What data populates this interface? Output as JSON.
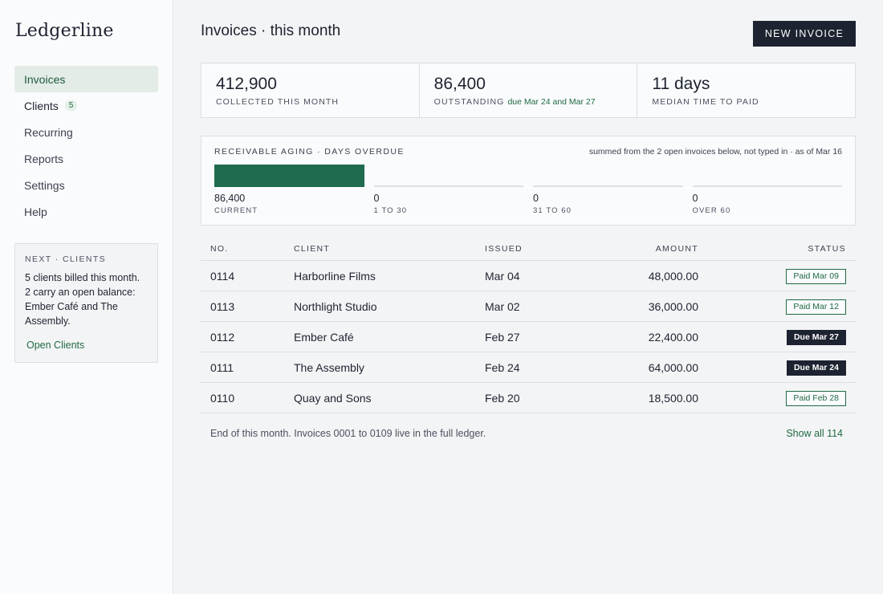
{
  "app": {
    "name": "Ledgerline"
  },
  "sidebar": {
    "items": [
      {
        "label": "Invoices"
      },
      {
        "label": "Clients",
        "badge": "5"
      },
      {
        "label": "Recurring"
      },
      {
        "label": "Reports"
      },
      {
        "label": "Settings"
      },
      {
        "label": "Help"
      }
    ],
    "next_card": {
      "title": "NEXT · CLIENTS",
      "body": "5 clients billed this month. 2 carry an open balance: Ember Café and The Assembly.",
      "link": "Open Clients"
    }
  },
  "header": {
    "title": "Invoices · this month",
    "new_button": "NEW INVOICE"
  },
  "stats": [
    {
      "value": "412,900",
      "label": "COLLECTED THIS MONTH",
      "note": ""
    },
    {
      "value": "86,400",
      "label": "OUTSTANDING",
      "note": "due Mar 24 and Mar 27"
    },
    {
      "value": "11 days",
      "label": "MEDIAN TIME TO PAID",
      "note": ""
    }
  ],
  "aging": {
    "title": "RECEIVABLE AGING · DAYS OVERDUE",
    "note": "summed from the 2 open invoices below, not typed in · as of Mar 16",
    "buckets": [
      {
        "value": "86,400",
        "label": "CURRENT",
        "amount": 86400
      },
      {
        "value": "0",
        "label": "1 TO 30",
        "amount": 0
      },
      {
        "value": "0",
        "label": "31 TO 60",
        "amount": 0
      },
      {
        "value": "0",
        "label": "OVER 60",
        "amount": 0
      }
    ]
  },
  "table": {
    "columns": {
      "no": "NO.",
      "client": "CLIENT",
      "issued": "ISSUED",
      "amount": "AMOUNT",
      "status": "STATUS"
    },
    "rows": [
      {
        "no": "0114",
        "client": "Harborline Films",
        "issued": "Mar 04",
        "amount": "48,000.00",
        "status": "Paid Mar 09",
        "state": "paid"
      },
      {
        "no": "0113",
        "client": "Northlight Studio",
        "issued": "Mar 02",
        "amount": "36,000.00",
        "status": "Paid Mar 12",
        "state": "paid"
      },
      {
        "no": "0112",
        "client": "Ember Café",
        "issued": "Feb 27",
        "amount": "22,400.00",
        "status": "Due Mar 27",
        "state": "due"
      },
      {
        "no": "0111",
        "client": "The Assembly",
        "issued": "Feb 24",
        "amount": "64,000.00",
        "status": "Due Mar 24",
        "state": "due"
      },
      {
        "no": "0110",
        "client": "Quay and Sons",
        "issued": "Feb 20",
        "amount": "18,500.00",
        "status": "Paid Feb 28",
        "state": "paid"
      }
    ]
  },
  "footer": {
    "text": "End of this month. Invoices 0001 to 0109 live in the full ledger.",
    "link": "Show all 114"
  },
  "colors": {
    "accent": "#1f6b4f",
    "ink": "#1d2330",
    "active_bg": "#e3ece6"
  }
}
